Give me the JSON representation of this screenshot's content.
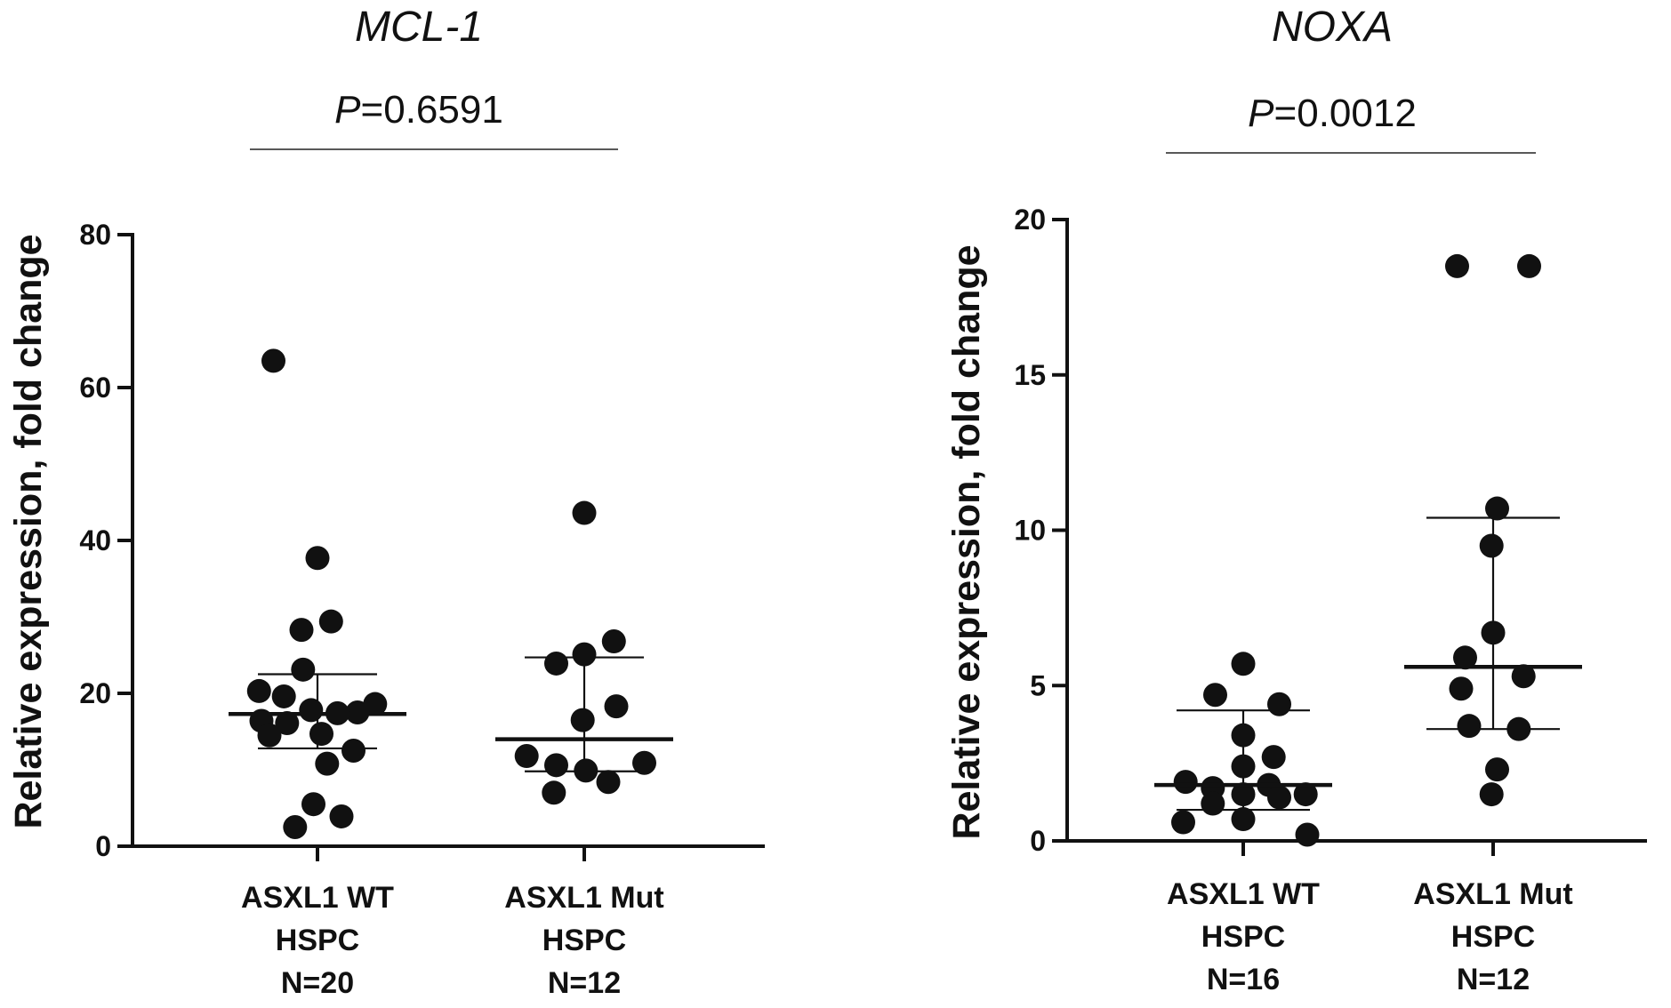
{
  "chart_data": [
    {
      "type": "scatter",
      "title": "MCL-1",
      "p_label": "P",
      "p_value": "=0.6591",
      "ylabel": "Relative expression, fold change",
      "ylim": [
        0,
        80
      ],
      "yticks": [
        0,
        20,
        40,
        60,
        80
      ],
      "ytick_labels": [
        "0",
        "20",
        "40",
        "60",
        "80"
      ],
      "groups": [
        {
          "label_lines": [
            "ASXL1 WT",
            "HSPC",
            "N=20"
          ],
          "n": 20,
          "mean": 17.3,
          "error_low": 12.8,
          "error_high": 22.5,
          "points": [
            {
              "offset": -0.55,
              "y": 63.5
            },
            {
              "offset": 0.0,
              "y": 37.7
            },
            {
              "offset": -0.2,
              "y": 28.3
            },
            {
              "offset": 0.17,
              "y": 29.4
            },
            {
              "offset": -0.18,
              "y": 23.1
            },
            {
              "offset": -0.73,
              "y": 20.3
            },
            {
              "offset": -0.42,
              "y": 19.6
            },
            {
              "offset": 0.72,
              "y": 18.6
            },
            {
              "offset": 0.5,
              "y": 17.5
            },
            {
              "offset": -0.08,
              "y": 17.8
            },
            {
              "offset": 0.25,
              "y": 17.4
            },
            {
              "offset": -0.7,
              "y": 16.4
            },
            {
              "offset": -0.38,
              "y": 16.1
            },
            {
              "offset": 0.05,
              "y": 14.7
            },
            {
              "offset": -0.6,
              "y": 14.5
            },
            {
              "offset": 0.45,
              "y": 12.5
            },
            {
              "offset": 0.12,
              "y": 10.8
            },
            {
              "offset": -0.05,
              "y": 5.5
            },
            {
              "offset": 0.3,
              "y": 3.9
            },
            {
              "offset": -0.28,
              "y": 2.5
            }
          ]
        },
        {
          "label_lines": [
            "ASXL1 Mut",
            "HSPC",
            "N=12"
          ],
          "n": 12,
          "mean": 14.0,
          "error_low": 9.8,
          "error_high": 24.7,
          "points": [
            {
              "offset": 0.0,
              "y": 43.6
            },
            {
              "offset": 0.37,
              "y": 26.8
            },
            {
              "offset": 0.0,
              "y": 25.1
            },
            {
              "offset": -0.35,
              "y": 23.9
            },
            {
              "offset": 0.4,
              "y": 18.3
            },
            {
              "offset": -0.02,
              "y": 16.5
            },
            {
              "offset": -0.72,
              "y": 11.8
            },
            {
              "offset": 0.75,
              "y": 10.9
            },
            {
              "offset": -0.35,
              "y": 10.6
            },
            {
              "offset": 0.02,
              "y": 9.9
            },
            {
              "offset": 0.3,
              "y": 8.4
            },
            {
              "offset": -0.38,
              "y": 7.0
            }
          ]
        }
      ]
    },
    {
      "type": "scatter",
      "title": "NOXA",
      "p_label": "P",
      "p_value": "=0.0012",
      "ylabel": "Relative expression, fold change",
      "ylim": [
        0,
        20
      ],
      "yticks": [
        0,
        5,
        10,
        15,
        20
      ],
      "ytick_labels": [
        "0",
        "5",
        "10",
        "15",
        "20"
      ],
      "groups": [
        {
          "label_lines": [
            "ASXL1 WT",
            "HSPC",
            "N=16"
          ],
          "n": 16,
          "mean": 1.8,
          "error_low": 1.0,
          "error_high": 4.2,
          "points": [
            {
              "offset": 0.0,
              "y": 5.7
            },
            {
              "offset": -0.35,
              "y": 4.7
            },
            {
              "offset": 0.45,
              "y": 4.4
            },
            {
              "offset": 0.0,
              "y": 3.4
            },
            {
              "offset": 0.38,
              "y": 2.7
            },
            {
              "offset": 0.0,
              "y": 2.4
            },
            {
              "offset": -0.72,
              "y": 1.9
            },
            {
              "offset": -0.38,
              "y": 1.7
            },
            {
              "offset": 0.32,
              "y": 1.8
            },
            {
              "offset": 0.0,
              "y": 1.5
            },
            {
              "offset": 0.78,
              "y": 1.5
            },
            {
              "offset": -0.38,
              "y": 1.2
            },
            {
              "offset": 0.45,
              "y": 1.4
            },
            {
              "offset": -0.75,
              "y": 0.6
            },
            {
              "offset": 0.0,
              "y": 0.7
            },
            {
              "offset": 0.8,
              "y": 0.2
            }
          ]
        },
        {
          "label_lines": [
            "ASXL1 Mut",
            "HSPC",
            "N=12"
          ],
          "n": 12,
          "mean": 5.6,
          "error_low": 3.6,
          "error_high": 10.4,
          "points": [
            {
              "offset": -0.45,
              "y": 18.5
            },
            {
              "offset": 0.45,
              "y": 18.5
            },
            {
              "offset": 0.05,
              "y": 10.7
            },
            {
              "offset": -0.02,
              "y": 9.5
            },
            {
              "offset": 0.0,
              "y": 6.7
            },
            {
              "offset": -0.35,
              "y": 5.9
            },
            {
              "offset": 0.38,
              "y": 5.3
            },
            {
              "offset": -0.4,
              "y": 4.9
            },
            {
              "offset": 0.32,
              "y": 3.6
            },
            {
              "offset": -0.3,
              "y": 3.7
            },
            {
              "offset": 0.05,
              "y": 2.3
            },
            {
              "offset": -0.02,
              "y": 1.5
            }
          ]
        }
      ]
    }
  ]
}
